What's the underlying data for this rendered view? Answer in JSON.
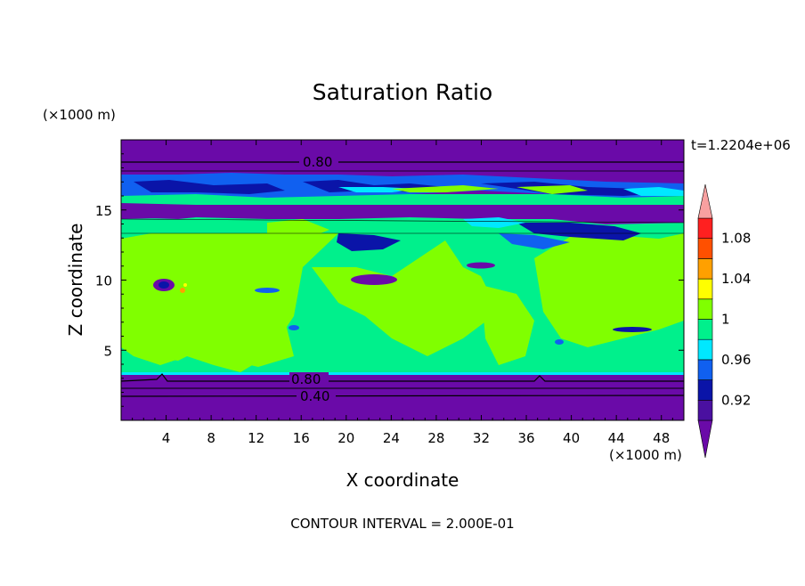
{
  "chart_data": {
    "type": "heatmap",
    "subtype": "filled-contour",
    "title": "Saturation Ratio",
    "xlabel": "X coordinate",
    "ylabel": "Z coordinate",
    "x_unit": "(×1000 m)",
    "y_unit": "(×1000 m)",
    "time_label": "t=1.2204e+06",
    "footer": "CONTOUR INTERVAL = 2.000E-01",
    "xlim": [
      0,
      50
    ],
    "ylim": [
      0,
      20
    ],
    "x_ticks": [
      4,
      8,
      12,
      16,
      20,
      24,
      28,
      32,
      36,
      40,
      44,
      48
    ],
    "y_ticks": [
      5,
      10,
      15
    ],
    "contour_labels": [
      {
        "text": "0.80",
        "x": 17.5,
        "z": 18.2
      },
      {
        "text": "0.80",
        "x": 16.0,
        "z": 3.0
      },
      {
        "text": "0.40",
        "x": 17.5,
        "z": 1.8
      }
    ],
    "colorbar": {
      "levels": [
        {
          "range": "<0.90",
          "color": "#6a0aa8"
        },
        {
          "range": "0.90–0.92",
          "color": "#4a10a0"
        },
        {
          "range": "0.92–0.94",
          "color": "#0a14a8"
        },
        {
          "range": "0.94–0.96",
          "color": "#1060f0"
        },
        {
          "range": "0.96–0.98",
          "color": "#00e8ff"
        },
        {
          "range": "0.98–1.00",
          "color": "#00f08c"
        },
        {
          "range": "1.00–1.02",
          "color": "#80ff00"
        },
        {
          "range": "1.02–1.04",
          "color": "#ffff00"
        },
        {
          "range": "1.04–1.06",
          "color": "#ffa000"
        },
        {
          "range": "1.06–1.08",
          "color": "#ff5000"
        },
        {
          "range": "1.08–1.10",
          "color": "#ff2020"
        },
        {
          "range": ">1.10",
          "color": "#f8a0a0"
        }
      ],
      "tick_labels": [
        "0.92",
        "0.96",
        "1",
        "1.04",
        "1.08"
      ]
    },
    "bands": [
      {
        "z_from": 0,
        "z_to": 3.5,
        "value": "<0.90"
      },
      {
        "z_from": 3.5,
        "z_to": 13.5,
        "value": "0.98–1.02 (mixed)"
      },
      {
        "z_from": 13.5,
        "z_to": 15.5,
        "value": "<0.90"
      },
      {
        "z_from": 15.5,
        "z_to": 17.5,
        "value": "0.92–0.98 (mixed)"
      },
      {
        "z_from": 17.5,
        "z_to": 20,
        "value": "<0.90"
      }
    ]
  }
}
